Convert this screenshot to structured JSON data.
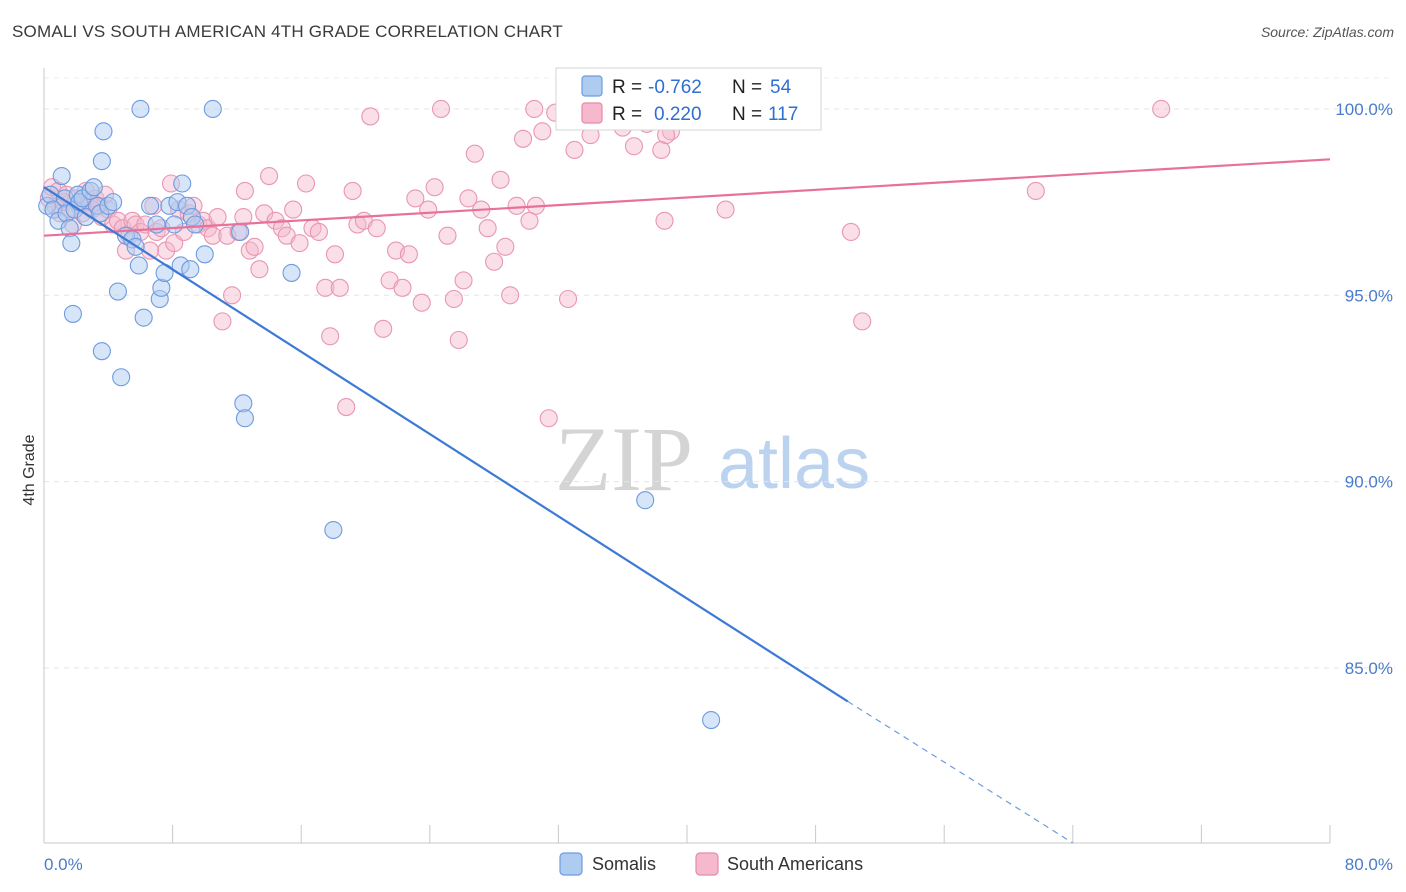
{
  "title": "SOMALI VS SOUTH AMERICAN 4TH GRADE CORRELATION CHART",
  "source": "Source: ZipAtlas.com",
  "watermark": {
    "zip": "ZIP",
    "atlas": "atlas"
  },
  "colors": {
    "blue": "#4a86d9",
    "blue_fill": "#aecbf0",
    "pink": "#e8719b",
    "pink_fill": "#f5b8cc",
    "tick": "#4a7cc9"
  },
  "legend_top": [
    {
      "r_label": "R =",
      "r_value": "-0.762",
      "n_label": "N =",
      "n_value": "54"
    },
    {
      "r_label": "R =",
      "r_value": "0.220",
      "n_label": "N =",
      "n_value": "117"
    }
  ],
  "legend_bottom": [
    "Somalis",
    "South Americans"
  ],
  "chart_data": {
    "type": "scatter",
    "title": "SOMALI VS SOUTH AMERICAN 4TH GRADE CORRELATION CHART",
    "xlabel": "",
    "ylabel": "4th Grade",
    "xlim": [
      0,
      80
    ],
    "ylim": [
      80.3,
      101.1
    ],
    "x_tick_labels": [
      "0.0%",
      "80.0%"
    ],
    "y_ticks": [
      100,
      95,
      90,
      85
    ],
    "y_tick_labels": [
      "100.0%",
      "95.0%",
      "90.0%",
      "85.0%"
    ],
    "grid": true,
    "series": [
      {
        "name": "Somalis",
        "r": -0.762,
        "n": 54,
        "trend": {
          "x0": 0,
          "y0": 97.9,
          "x1": 50,
          "y1": 84.1,
          "dash_to_x": 64,
          "dash_to_y": 80.3
        },
        "points": [
          [
            0.2,
            97.4
          ],
          [
            0.4,
            97.7
          ],
          [
            0.6,
            97.3
          ],
          [
            0.9,
            97.0
          ],
          [
            1.1,
            98.2
          ],
          [
            1.3,
            97.6
          ],
          [
            1.4,
            97.2
          ],
          [
            1.6,
            96.8
          ],
          [
            1.7,
            96.4
          ],
          [
            1.9,
            97.3
          ],
          [
            2.1,
            97.7
          ],
          [
            2.2,
            97.5
          ],
          [
            2.4,
            97.6
          ],
          [
            2.6,
            97.1
          ],
          [
            2.9,
            97.8
          ],
          [
            3.1,
            97.9
          ],
          [
            3.3,
            97.4
          ],
          [
            3.5,
            97.2
          ],
          [
            3.6,
            98.6
          ],
          [
            3.7,
            99.4
          ],
          [
            4.0,
            97.4
          ],
          [
            4.3,
            97.5
          ],
          [
            4.6,
            95.1
          ],
          [
            5.1,
            96.6
          ],
          [
            5.5,
            96.5
          ],
          [
            5.7,
            96.3
          ],
          [
            5.9,
            95.8
          ],
          [
            6.0,
            100.0
          ],
          [
            6.2,
            94.4
          ],
          [
            6.6,
            97.4
          ],
          [
            7.0,
            96.9
          ],
          [
            7.2,
            94.9
          ],
          [
            7.3,
            95.2
          ],
          [
            7.5,
            95.6
          ],
          [
            7.8,
            97.4
          ],
          [
            8.1,
            96.9
          ],
          [
            8.3,
            97.5
          ],
          [
            8.5,
            95.8
          ],
          [
            8.6,
            98.0
          ],
          [
            8.9,
            97.4
          ],
          [
            9.1,
            95.7
          ],
          [
            9.2,
            97.1
          ],
          [
            9.4,
            96.9
          ],
          [
            10.0,
            96.1
          ],
          [
            10.5,
            100.0
          ],
          [
            12.2,
            96.7
          ],
          [
            12.4,
            92.1
          ],
          [
            12.5,
            91.7
          ],
          [
            15.4,
            95.6
          ],
          [
            18.0,
            88.7
          ],
          [
            37.4,
            89.5
          ],
          [
            41.5,
            83.6
          ],
          [
            1.8,
            94.5
          ],
          [
            3.6,
            93.5
          ],
          [
            4.8,
            92.8
          ]
        ]
      },
      {
        "name": "South Americans",
        "r": 0.22,
        "n": 117,
        "trend": {
          "x0": 0,
          "y0": 96.6,
          "x1": 80,
          "y1": 98.65
        },
        "points": [
          [
            0.3,
            97.6
          ],
          [
            0.5,
            97.9
          ],
          [
            0.7,
            97.4
          ],
          [
            0.9,
            97.8
          ],
          [
            1.0,
            97.2
          ],
          [
            1.2,
            97.5
          ],
          [
            1.4,
            97.7
          ],
          [
            1.6,
            97.3
          ],
          [
            1.8,
            96.9
          ],
          [
            2.0,
            97.6
          ],
          [
            2.2,
            97.4
          ],
          [
            2.4,
            97.2
          ],
          [
            2.6,
            97.8
          ],
          [
            2.8,
            97.5
          ],
          [
            3.0,
            97.3
          ],
          [
            3.2,
            97.6
          ],
          [
            3.4,
            97.4
          ],
          [
            3.6,
            97.1
          ],
          [
            3.8,
            97.7
          ],
          [
            4.0,
            97.3
          ],
          [
            4.3,
            96.9
          ],
          [
            4.6,
            97.0
          ],
          [
            4.9,
            96.8
          ],
          [
            5.1,
            96.2
          ],
          [
            5.3,
            96.6
          ],
          [
            5.5,
            97.0
          ],
          [
            5.7,
            96.9
          ],
          [
            6.0,
            96.7
          ],
          [
            6.3,
            96.9
          ],
          [
            6.6,
            96.2
          ],
          [
            6.8,
            97.4
          ],
          [
            7.0,
            96.7
          ],
          [
            7.3,
            96.8
          ],
          [
            7.6,
            96.2
          ],
          [
            7.9,
            98.0
          ],
          [
            8.1,
            96.4
          ],
          [
            8.4,
            97.3
          ],
          [
            8.7,
            96.7
          ],
          [
            9.0,
            97.2
          ],
          [
            9.3,
            97.4
          ],
          [
            9.6,
            96.9
          ],
          [
            9.9,
            97.0
          ],
          [
            10.2,
            96.8
          ],
          [
            10.5,
            96.6
          ],
          [
            10.8,
            97.1
          ],
          [
            11.1,
            94.3
          ],
          [
            11.4,
            96.6
          ],
          [
            11.7,
            95.0
          ],
          [
            12.1,
            96.7
          ],
          [
            12.4,
            97.1
          ],
          [
            12.5,
            97.8
          ],
          [
            12.8,
            96.2
          ],
          [
            13.1,
            96.3
          ],
          [
            13.4,
            95.7
          ],
          [
            13.7,
            97.2
          ],
          [
            14.0,
            98.2
          ],
          [
            14.4,
            97.0
          ],
          [
            14.8,
            96.8
          ],
          [
            15.1,
            96.6
          ],
          [
            15.5,
            97.3
          ],
          [
            15.9,
            96.4
          ],
          [
            16.3,
            98.0
          ],
          [
            16.7,
            96.8
          ],
          [
            17.1,
            96.7
          ],
          [
            17.5,
            95.2
          ],
          [
            17.8,
            93.9
          ],
          [
            18.1,
            96.1
          ],
          [
            18.4,
            95.2
          ],
          [
            18.8,
            92.0
          ],
          [
            19.2,
            97.8
          ],
          [
            19.5,
            96.9
          ],
          [
            19.9,
            97.0
          ],
          [
            20.3,
            99.8
          ],
          [
            20.7,
            96.8
          ],
          [
            21.1,
            94.1
          ],
          [
            21.5,
            95.4
          ],
          [
            21.9,
            96.2
          ],
          [
            22.3,
            95.2
          ],
          [
            22.7,
            96.1
          ],
          [
            23.1,
            97.6
          ],
          [
            23.5,
            94.8
          ],
          [
            23.9,
            97.3
          ],
          [
            24.3,
            97.9
          ],
          [
            24.7,
            100.0
          ],
          [
            25.1,
            96.6
          ],
          [
            25.5,
            94.9
          ],
          [
            25.8,
            93.8
          ],
          [
            26.1,
            95.4
          ],
          [
            26.4,
            97.6
          ],
          [
            26.8,
            98.8
          ],
          [
            27.2,
            97.3
          ],
          [
            27.6,
            96.8
          ],
          [
            28.0,
            95.9
          ],
          [
            28.4,
            98.1
          ],
          [
            28.7,
            96.3
          ],
          [
            29.0,
            95.0
          ],
          [
            29.4,
            97.4
          ],
          [
            29.8,
            99.2
          ],
          [
            30.2,
            97.0
          ],
          [
            30.6,
            97.4
          ],
          [
            31.0,
            99.4
          ],
          [
            31.4,
            91.7
          ],
          [
            31.8,
            99.9
          ],
          [
            32.6,
            94.9
          ],
          [
            33.0,
            98.9
          ],
          [
            34.0,
            99.3
          ],
          [
            35.3,
            99.9
          ],
          [
            36.0,
            99.5
          ],
          [
            36.7,
            99.0
          ],
          [
            37.5,
            99.6
          ],
          [
            38.4,
            98.9
          ],
          [
            39.0,
            99.4
          ],
          [
            38.7,
            99.3
          ],
          [
            30.5,
            100.0
          ],
          [
            38.6,
            97.0
          ],
          [
            42.4,
            97.3
          ],
          [
            50.2,
            96.7
          ],
          [
            50.9,
            94.3
          ],
          [
            61.7,
            97.8
          ],
          [
            69.5,
            100.0
          ]
        ]
      }
    ]
  }
}
